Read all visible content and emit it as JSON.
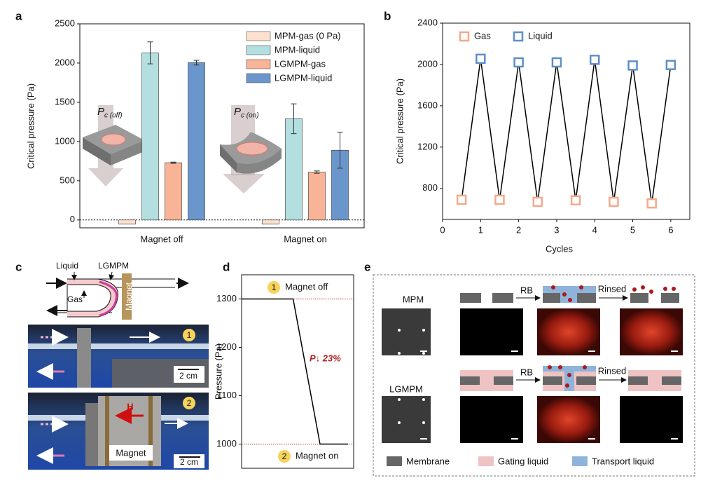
{
  "panels": [
    "a",
    "b",
    "c",
    "d",
    "e"
  ],
  "chart_data": [
    {
      "type": "bar",
      "ylabel": "Critical pressure (Pa)",
      "categories": [
        "Magnet off",
        "Magnet on"
      ],
      "series": [
        {
          "name": "MPM-gas (0 Pa)",
          "color": "#fde1cf",
          "values": [
            0,
            0
          ]
        },
        {
          "name": "MPM-liquid",
          "color": "#b3dfe0",
          "values": [
            2130,
            1290
          ],
          "errors": [
            140,
            190
          ]
        },
        {
          "name": "LGMPM-gas",
          "color": "#f9b396",
          "values": [
            730,
            610
          ],
          "errors": [
            8,
            15
          ]
        },
        {
          "name": "LGMPM-liquid",
          "color": "#6b96cc",
          "values": [
            2005,
            890
          ],
          "errors": [
            30,
            230
          ]
        }
      ],
      "ylim": [
        -100,
        2500
      ],
      "yticks": [
        0,
        500,
        1000,
        1500,
        2000,
        2500
      ],
      "legend": "upper right",
      "annotations": [
        {
          "text": "P",
          "sub": "c (off)"
        },
        {
          "text": "P",
          "sub": "c (on)"
        }
      ]
    },
    {
      "type": "line",
      "xlabel": "Cycles",
      "ylabel": "Critical pressure (Pa)",
      "series": [
        {
          "name": "Gas",
          "color": "#f4a98a",
          "x": [
            0.5,
            1.5,
            2.5,
            3.5,
            4.5,
            5.5
          ],
          "values": [
            690,
            690,
            670,
            685,
            670,
            655
          ]
        },
        {
          "name": "Liquid",
          "color": "#5d8fc8",
          "x": [
            1,
            2,
            3,
            4,
            5,
            6
          ],
          "values": [
            2055,
            2020,
            2020,
            2045,
            1990,
            1995
          ]
        }
      ],
      "line_color": "#000000",
      "xlim": [
        0,
        6.5
      ],
      "ylim": [
        500,
        2400
      ],
      "xticks": [
        0,
        1,
        2,
        3,
        4,
        5,
        6
      ],
      "yticks": [
        800,
        1200,
        1600,
        2000,
        2400
      ],
      "legend": "upper right"
    },
    {
      "type": "line",
      "ylabel": "Pressure (Pa)",
      "x": [
        0,
        0.46,
        0.7,
        0.95
      ],
      "values": [
        1300,
        1300,
        1000,
        1000
      ],
      "color": "#000000",
      "reference_color": "#b22222",
      "xlim": [
        0,
        1
      ],
      "ylim": [
        950,
        1350
      ],
      "yticks": [
        1000,
        1100,
        1200,
        1300
      ],
      "annotations": [
        {
          "text": "P↓ 23%"
        },
        {
          "step": "1",
          "text": "Magnet off"
        },
        {
          "step": "2",
          "text": "Magnet on"
        }
      ]
    }
  ],
  "panel_c": {
    "schematic_labels": [
      "Liquid",
      "LGMPM",
      "Gas",
      "Magnet"
    ],
    "photo_1": {
      "step": "1",
      "scale": "2 cm"
    },
    "photo_2": {
      "step": "2",
      "field": "H",
      "magnet": "Magnet",
      "scale": "2 cm"
    }
  },
  "panel_e": {
    "rows": [
      {
        "label": "MPM",
        "step1": "RB",
        "step2": "Rinsed"
      },
      {
        "label": "LGMPM",
        "step1": "RB",
        "step2": "Rinsed"
      }
    ],
    "legend": [
      "Membrane",
      "Gating liquid",
      "Transport liquid"
    ]
  }
}
